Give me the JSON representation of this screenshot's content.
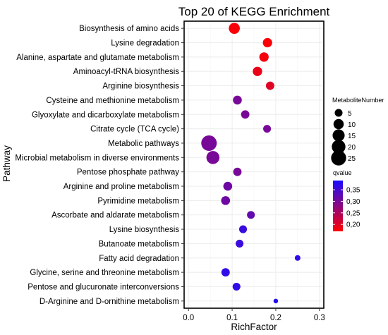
{
  "chart_data": {
    "type": "scatter",
    "title": "Top 20 of KEGG Enrichment",
    "xlabel": "RichFactor",
    "ylabel": "Pathway",
    "xlim": [
      -0.01,
      0.31
    ],
    "xticks": [
      0.0,
      0.1,
      0.2,
      0.3
    ],
    "xtick_labels": [
      "0.0",
      "0.1",
      "0.2",
      "0.3"
    ],
    "grid": true,
    "legend_placement": "right",
    "size_legend": {
      "title": "MetaboliteNumber",
      "values": [
        5,
        10,
        15,
        20,
        25
      ],
      "labels": [
        "5",
        "10",
        "15",
        "20",
        "25"
      ]
    },
    "color_legend": {
      "title": "qvalue",
      "range": [
        0.17,
        0.39
      ],
      "ticks": [
        0.2,
        0.25,
        0.3,
        0.35
      ],
      "tick_labels": [
        "0,20",
        "0,25",
        "0,30",
        "0,35"
      ],
      "low_color": "#ff0000",
      "high_color": "#1a0dff"
    },
    "points": [
      {
        "pathway": "Biosynthesis of amino acids",
        "x": 0.105,
        "count": 12,
        "q": 0.175
      },
      {
        "pathway": "Lysine degradation",
        "x": 0.181,
        "count": 8,
        "q": 0.175
      },
      {
        "pathway": "Alanine, aspartate and glutamate metabolism",
        "x": 0.173,
        "count": 8,
        "q": 0.18
      },
      {
        "pathway": "Aminoacyl-tRNA biosynthesis",
        "x": 0.158,
        "count": 8,
        "q": 0.19
      },
      {
        "pathway": "Arginine biosynthesis",
        "x": 0.187,
        "count": 6,
        "q": 0.2
      },
      {
        "pathway": "Cysteine and methionine metabolism",
        "x": 0.112,
        "count": 7,
        "q": 0.3
      },
      {
        "pathway": "Glyoxylate and dicarboxylate metabolism",
        "x": 0.13,
        "count": 6,
        "q": 0.3
      },
      {
        "pathway": "Citrate cycle (TCA cycle)",
        "x": 0.18,
        "count": 5,
        "q": 0.3
      },
      {
        "pathway": "Metabolic pathways",
        "x": 0.047,
        "count": 27,
        "q": 0.3
      },
      {
        "pathway": "Microbial metabolism in diverse environments",
        "x": 0.056,
        "count": 18,
        "q": 0.3
      },
      {
        "pathway": "Pentose phosphate pathway",
        "x": 0.112,
        "count": 6,
        "q": 0.3
      },
      {
        "pathway": "Arginine and proline metabolism",
        "x": 0.09,
        "count": 7,
        "q": 0.31
      },
      {
        "pathway": "Pyrimidine metabolism",
        "x": 0.085,
        "count": 7,
        "q": 0.31
      },
      {
        "pathway": "Ascorbate and aldarate metabolism",
        "x": 0.143,
        "count": 5,
        "q": 0.32
      },
      {
        "pathway": "Lysine biosynthesis",
        "x": 0.125,
        "count": 5,
        "q": 0.36
      },
      {
        "pathway": "Butanoate metabolism",
        "x": 0.117,
        "count": 5,
        "q": 0.36
      },
      {
        "pathway": "Fatty acid degradation",
        "x": 0.25,
        "count": 2,
        "q": 0.37
      },
      {
        "pathway": "Glycine, serine and threonine metabolism",
        "x": 0.085,
        "count": 6,
        "q": 0.37
      },
      {
        "pathway": "Pentose and glucuronate interconversions",
        "x": 0.11,
        "count": 5,
        "q": 0.37
      },
      {
        "pathway": "D-Arginine and D-ornithine metabolism",
        "x": 0.2,
        "count": 1,
        "q": 0.38
      }
    ]
  }
}
